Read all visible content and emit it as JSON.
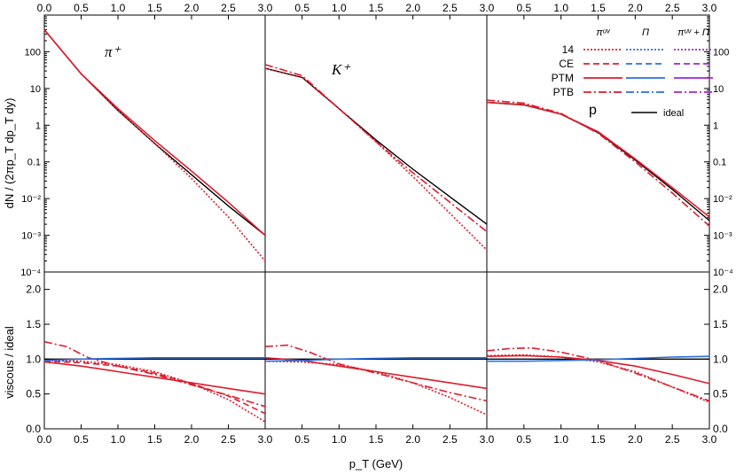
{
  "chart_data": {
    "type": "line",
    "xlabel": "p_T (GeV)",
    "ylabel_top": "dN / (2πp_T dp_T dy)",
    "ylabel_bottom": "viscous / ideal",
    "xlim": [
      0,
      3
    ],
    "x_ticks": [
      "0.0",
      "0.5",
      "1.0",
      "1.5",
      "2.0",
      "2.5",
      "3.0"
    ],
    "top_ylim_log10": [
      -4,
      3
    ],
    "top_y_ticks": [
      "10⁻⁴",
      "10⁻³",
      "10⁻²",
      "0.1",
      "1",
      "10",
      "100"
    ],
    "bottom_ylim": [
      0,
      2.25
    ],
    "bottom_y_ticks": [
      "0.0",
      "0.5",
      "1.0",
      "1.5",
      "2.0"
    ],
    "legend": {
      "columns": [
        "πᵘᵛ",
        "Π",
        "πᵘᵛ + Π"
      ],
      "rows": [
        "14",
        "CE",
        "PTM",
        "PTB"
      ],
      "ideal": "ideal",
      "column_colors": [
        "#dd1c2c",
        "#2a6fe0",
        "#a028c8"
      ],
      "row_dashes": [
        "dotted",
        "dashed",
        "solid",
        "dashdot"
      ]
    },
    "panels": [
      {
        "particle": "π⁺",
        "spectrum_series": [
          {
            "style": "ideal",
            "x": [
              0,
              0.5,
              1,
              1.5,
              2,
              2.5,
              3
            ],
            "log10_y": [
              2.6,
              1.4,
              0.4,
              -0.5,
              -1.35,
              -2.2,
              -3.0
            ]
          },
          {
            "style": "PTM-shear",
            "x": [
              0,
              0.5,
              1,
              1.5,
              2,
              2.5,
              3
            ],
            "log10_y": [
              2.6,
              1.4,
              0.45,
              -0.42,
              -1.25,
              -2.1,
              -3.0
            ]
          },
          {
            "style": "14-shear",
            "x": [
              0,
              0.5,
              1,
              1.5,
              2,
              2.5,
              3
            ],
            "log10_y": [
              2.6,
              1.4,
              0.4,
              -0.5,
              -1.45,
              -2.5,
              -3.7
            ]
          }
        ],
        "ratio_series": [
          {
            "style": "ideal",
            "x": [
              0,
              3
            ],
            "y": [
              1.0,
              1.0
            ]
          },
          {
            "style": "14-shear",
            "x": [
              0,
              0.5,
              1,
              1.5,
              2,
              2.5,
              3
            ],
            "y": [
              0.98,
              0.97,
              0.92,
              0.82,
              0.65,
              0.42,
              0.1
            ]
          },
          {
            "style": "CE-shear",
            "x": [
              0,
              0.5,
              1,
              1.5,
              2,
              2.5,
              3
            ],
            "y": [
              0.97,
              0.95,
              0.9,
              0.8,
              0.65,
              0.47,
              0.22
            ]
          },
          {
            "style": "PTM-shear",
            "x": [
              0,
              0.5,
              1,
              1.5,
              2,
              2.5,
              3
            ],
            "y": [
              0.96,
              0.9,
              0.82,
              0.74,
              0.66,
              0.58,
              0.5
            ]
          },
          {
            "style": "PTB-shear",
            "x": [
              0,
              0.3,
              0.6,
              1,
              1.5,
              2,
              2.5,
              3
            ],
            "y": [
              1.25,
              1.18,
              1.02,
              0.9,
              0.78,
              0.63,
              0.48,
              0.32
            ]
          },
          {
            "style": "PTM-bulk",
            "x": [
              0,
              0.5,
              1,
              1.5,
              2,
              2.5,
              3
            ],
            "y": [
              0.98,
              1.0,
              1.01,
              1.02,
              1.02,
              1.02,
              1.02
            ]
          }
        ]
      },
      {
        "particle": "K⁺",
        "spectrum_series": [
          {
            "style": "ideal",
            "x": [
              0,
              0.5,
              1,
              1.5,
              2,
              2.5,
              3
            ],
            "log10_y": [
              1.55,
              1.3,
              0.45,
              -0.4,
              -1.2,
              -1.95,
              -2.7
            ]
          },
          {
            "style": "PTB-shear",
            "x": [
              0,
              0.5,
              1,
              1.5,
              2,
              2.5,
              3
            ],
            "log10_y": [
              1.65,
              1.35,
              0.45,
              -0.45,
              -1.3,
              -2.1,
              -2.9
            ]
          },
          {
            "style": "14-shear",
            "x": [
              0,
              0.5,
              1,
              1.5,
              2,
              2.5,
              3
            ],
            "log10_y": [
              1.55,
              1.3,
              0.45,
              -0.45,
              -1.4,
              -2.4,
              -3.4
            ]
          }
        ],
        "ratio_series": [
          {
            "style": "ideal",
            "x": [
              0,
              3
            ],
            "y": [
              1.0,
              1.0
            ]
          },
          {
            "style": "14-shear",
            "x": [
              0,
              0.5,
              1,
              1.5,
              2,
              2.5,
              3
            ],
            "y": [
              0.97,
              0.96,
              0.92,
              0.82,
              0.66,
              0.45,
              0.2
            ]
          },
          {
            "style": "PTM-shear",
            "x": [
              0,
              0.5,
              1,
              1.5,
              2,
              2.5,
              3
            ],
            "y": [
              1.02,
              0.98,
              0.9,
              0.82,
              0.74,
              0.66,
              0.58
            ]
          },
          {
            "style": "PTB-shear",
            "x": [
              0,
              0.3,
              0.6,
              1,
              1.5,
              2,
              2.5,
              3
            ],
            "y": [
              1.18,
              1.2,
              1.1,
              0.93,
              0.8,
              0.66,
              0.52,
              0.4
            ]
          },
          {
            "style": "PTM-bulk",
            "x": [
              0,
              0.5,
              1,
              1.5,
              2,
              2.5,
              3
            ],
            "y": [
              0.97,
              0.98,
              1.0,
              1.01,
              1.02,
              1.02,
              1.02
            ]
          }
        ]
      },
      {
        "particle": "p",
        "spectrum_series": [
          {
            "style": "ideal",
            "x": [
              0,
              0.5,
              1,
              1.5,
              2,
              2.5,
              3
            ],
            "log10_y": [
              0.62,
              0.55,
              0.3,
              -0.2,
              -0.95,
              -1.75,
              -2.6
            ]
          },
          {
            "style": "PTB-shear",
            "x": [
              0,
              0.5,
              1,
              1.5,
              2,
              2.5,
              3
            ],
            "log10_y": [
              0.68,
              0.6,
              0.32,
              -0.22,
              -1.0,
              -1.85,
              -2.75
            ]
          },
          {
            "style": "PTM-shear",
            "x": [
              0,
              0.5,
              1,
              1.5,
              2,
              2.5,
              3
            ],
            "log10_y": [
              0.62,
              0.56,
              0.3,
              -0.18,
              -0.92,
              -1.7,
              -2.5
            ]
          }
        ],
        "ratio_series": [
          {
            "style": "ideal",
            "x": [
              0,
              3
            ],
            "y": [
              1.0,
              1.0
            ]
          },
          {
            "style": "14-shear",
            "x": [
              0,
              0.5,
              1,
              1.5,
              2,
              2.5,
              3
            ],
            "y": [
              1.05,
              1.06,
              1.03,
              0.96,
              0.82,
              0.6,
              0.38
            ]
          },
          {
            "style": "PTM-shear",
            "x": [
              0,
              0.5,
              1,
              1.5,
              2,
              2.5,
              3
            ],
            "y": [
              1.04,
              1.05,
              1.03,
              0.98,
              0.9,
              0.78,
              0.65
            ]
          },
          {
            "style": "PTB-shear",
            "x": [
              0,
              0.3,
              0.6,
              1,
              1.5,
              2,
              2.5,
              3
            ],
            "y": [
              1.12,
              1.15,
              1.16,
              1.1,
              0.98,
              0.8,
              0.6,
              0.4
            ]
          },
          {
            "style": "PTM-bulk",
            "x": [
              0,
              0.5,
              1,
              1.5,
              2,
              2.5,
              3
            ],
            "y": [
              0.97,
              0.97,
              0.98,
              0.99,
              1.01,
              1.03,
              1.04
            ]
          }
        ]
      }
    ]
  }
}
